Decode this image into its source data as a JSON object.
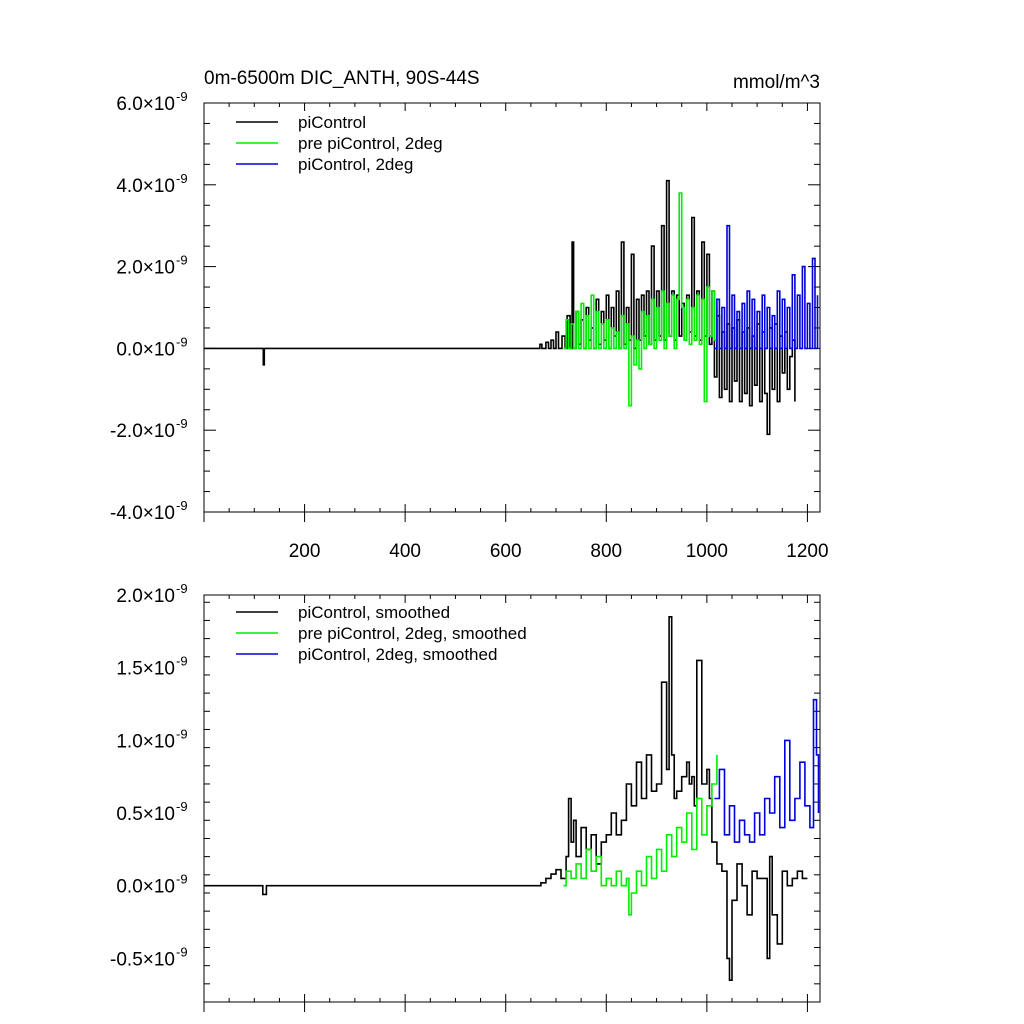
{
  "chart_data": [
    {
      "type": "line",
      "title": "0m-6500m DIC_ANTH, 90S-44S",
      "units": "mmol/m^3",
      "xlabel": "",
      "ylabel": "",
      "xlim": [
        0,
        1225
      ],
      "ylim": [
        -4.0,
        6.0
      ],
      "y_scale_exponent": "-9",
      "xticks": [
        200,
        400,
        600,
        800,
        1000,
        1200
      ],
      "xtick_labels": [
        "200",
        "400",
        "600",
        "800",
        "1000",
        "1200"
      ],
      "yticks": [
        -4.0,
        -2.0,
        0.0,
        2.0,
        4.0,
        6.0
      ],
      "ytick_labels": [
        "-4.0×10",
        "-2.0×10",
        "0.0×10",
        "2.0×10",
        "4.0×10",
        "6.0×10"
      ],
      "legend_position": "top-left",
      "series": [
        {
          "name": "piControl",
          "color": "#000000",
          "x": [
            0,
            115,
            118,
            120,
            122,
            125,
            660,
            668,
            672,
            680,
            685,
            690,
            695,
            700,
            705,
            712,
            718,
            722,
            728,
            732,
            735,
            740,
            745,
            750,
            755,
            760,
            765,
            770,
            775,
            780,
            785,
            790,
            795,
            800,
            805,
            810,
            815,
            820,
            825,
            830,
            835,
            840,
            845,
            850,
            855,
            860,
            865,
            870,
            875,
            880,
            885,
            890,
            895,
            900,
            905,
            910,
            915,
            920,
            925,
            930,
            935,
            940,
            945,
            950,
            955,
            960,
            965,
            970,
            975,
            980,
            985,
            990,
            995,
            1000,
            1005,
            1010,
            1015,
            1020,
            1025,
            1030,
            1035,
            1040,
            1045,
            1050,
            1055,
            1060,
            1065,
            1070,
            1075,
            1080,
            1085,
            1090,
            1095,
            1100,
            1105,
            1110,
            1115,
            1120,
            1125,
            1130,
            1135,
            1140,
            1145,
            1150,
            1155,
            1160,
            1165,
            1170,
            1175
          ],
          "y": [
            0.0,
            0.0,
            -0.4,
            0.0,
            0.0,
            0.0,
            0.0,
            0.1,
            0.0,
            0.15,
            0.0,
            0.2,
            0.0,
            0.4,
            0.0,
            0.3,
            0.0,
            0.8,
            0.0,
            2.6,
            0.0,
            0.9,
            0.1,
            0.7,
            0.0,
            1.0,
            0.2,
            0.5,
            0.0,
            1.2,
            0.1,
            0.9,
            0.2,
            1.3,
            0.0,
            1.0,
            0.3,
            1.4,
            0.0,
            2.6,
            0.1,
            1.0,
            0.2,
            2.3,
            0.0,
            1.2,
            0.2,
            1.3,
            0.3,
            1.4,
            0.1,
            2.5,
            0.2,
            1.4,
            0.3,
            3.0,
            0.2,
            4.1,
            0.3,
            1.4,
            0.2,
            1.3,
            0.3,
            1.1,
            0.2,
            1.3,
            0.4,
            3.2,
            0.3,
            1.4,
            0.2,
            2.6,
            0.3,
            2.3,
            0.1,
            1.4,
            -0.7,
            0.8,
            -1.2,
            0.4,
            -1.0,
            0.6,
            -1.3,
            0.5,
            -0.8,
            0.7,
            -1.3,
            0.4,
            -1.1,
            0.5,
            -1.4,
            0.3,
            -0.9,
            0.6,
            -1.3,
            0.4,
            -1.1,
            -2.1,
            0.5,
            -1.0,
            0.6,
            -1.3,
            0.3,
            -0.6,
            0.4,
            -1.0,
            -0.2,
            0.2,
            -1.3
          ]
        },
        {
          "name": "pre piControl, 2deg",
          "color": "#00ee00",
          "x": [
            715,
            720,
            725,
            730,
            735,
            740,
            745,
            750,
            755,
            760,
            765,
            770,
            775,
            780,
            785,
            790,
            795,
            800,
            805,
            810,
            815,
            820,
            825,
            830,
            835,
            840,
            845,
            850,
            855,
            860,
            865,
            870,
            875,
            880,
            885,
            890,
            895,
            900,
            905,
            910,
            915,
            920,
            925,
            930,
            935,
            940,
            945,
            950,
            955,
            960,
            965,
            970,
            975,
            980,
            985,
            990,
            995,
            1000,
            1005,
            1010,
            1015,
            1020
          ],
          "y": [
            0.0,
            0.7,
            0.0,
            0.6,
            0.0,
            0.9,
            0.0,
            1.1,
            0.0,
            0.8,
            0.0,
            1.3,
            0.0,
            0.9,
            0.0,
            0.6,
            0.0,
            0.7,
            0.0,
            0.5,
            0.0,
            0.4,
            0.0,
            0.8,
            0.0,
            0.6,
            -1.4,
            0.3,
            -0.4,
            0.2,
            -0.5,
            0.9,
            0.0,
            0.8,
            0.1,
            1.2,
            0.0,
            1.0,
            0.2,
            1.4,
            0.0,
            1.1,
            0.3,
            1.3,
            0.0,
            1.2,
            3.8,
            1.0,
            0.2,
            1.2,
            0.1,
            1.0,
            0.2,
            1.3,
            0.1,
            1.2,
            -1.3,
            1.5,
            0.3,
            1.4,
            0.2,
            1.0
          ]
        },
        {
          "name": "piControl, 2deg",
          "color": "#0000dd",
          "x": [
            1015,
            1020,
            1025,
            1030,
            1035,
            1040,
            1045,
            1050,
            1055,
            1060,
            1065,
            1070,
            1075,
            1080,
            1085,
            1090,
            1095,
            1100,
            1105,
            1110,
            1115,
            1120,
            1125,
            1130,
            1135,
            1140,
            1145,
            1150,
            1155,
            1160,
            1165,
            1170,
            1175,
            1180,
            1185,
            1190,
            1195,
            1200,
            1205,
            1210,
            1215,
            1220
          ],
          "y": [
            0.0,
            1.2,
            0.0,
            1.0,
            0.0,
            3.0,
            0.0,
            1.3,
            0.0,
            0.9,
            0.0,
            1.1,
            0.0,
            1.4,
            0.0,
            1.2,
            0.0,
            0.9,
            0.0,
            1.3,
            0.0,
            1.0,
            0.0,
            0.8,
            0.0,
            1.4,
            0.0,
            1.2,
            0.0,
            1.0,
            0.0,
            1.8,
            0.0,
            1.3,
            0.0,
            2.0,
            0.0,
            1.1,
            0.0,
            2.2,
            0.0,
            1.3
          ]
        }
      ]
    },
    {
      "type": "line",
      "title": "",
      "xlabel": "",
      "ylabel": "",
      "xlim": [
        0,
        1225
      ],
      "ylim": [
        -0.8,
        2.0
      ],
      "y_scale_exponent": "-9",
      "xticks": [
        200,
        400,
        600,
        800,
        1000,
        1200
      ],
      "yticks": [
        -0.5,
        0.0,
        0.5,
        1.0,
        1.5,
        2.0
      ],
      "ytick_labels": [
        "-0.5×10",
        "0.0×10",
        "0.5×10",
        "1.0×10",
        "1.5×10",
        "2.0×10"
      ],
      "legend_position": "top-left",
      "series": [
        {
          "name": "piControl, smoothed",
          "color": "#000000",
          "x": [
            0,
            115,
            117,
            122,
            124,
            660,
            670,
            680,
            690,
            700,
            710,
            720,
            725,
            730,
            735,
            740,
            750,
            760,
            770,
            780,
            790,
            800,
            810,
            820,
            830,
            840,
            850,
            860,
            870,
            880,
            890,
            900,
            910,
            920,
            925,
            930,
            935,
            940,
            950,
            960,
            965,
            970,
            975,
            980,
            990,
            1000,
            1005,
            1010,
            1020,
            1030,
            1040,
            1045,
            1050,
            1060,
            1070,
            1080,
            1090,
            1100,
            1110,
            1120,
            1125,
            1130,
            1140,
            1150,
            1160,
            1170,
            1180,
            1190,
            1200
          ],
          "y": [
            0.0,
            0.0,
            -0.06,
            -0.06,
            0.0,
            0.0,
            0.02,
            0.05,
            0.08,
            0.11,
            0.05,
            0.2,
            0.6,
            0.3,
            0.45,
            0.2,
            0.4,
            0.25,
            0.35,
            0.15,
            0.3,
            0.35,
            0.5,
            0.35,
            0.45,
            0.7,
            0.55,
            0.85,
            0.6,
            0.9,
            0.65,
            0.7,
            1.4,
            0.8,
            1.85,
            0.9,
            0.6,
            0.65,
            0.75,
            0.85,
            0.7,
            0.75,
            0.55,
            1.55,
            0.7,
            0.8,
            0.6,
            0.3,
            0.15,
            0.1,
            -0.5,
            -0.65,
            -0.1,
            0.15,
            0.0,
            -0.2,
            0.1,
            0.05,
            0.05,
            -0.5,
            0.2,
            -0.2,
            -0.4,
            0.1,
            0.0,
            0.05,
            0.1,
            0.05,
            0.05
          ]
        },
        {
          "name": "pre piControl, 2deg, smoothed",
          "color": "#00ee00",
          "x": [
            715,
            720,
            730,
            740,
            750,
            760,
            770,
            780,
            790,
            800,
            810,
            820,
            830,
            840,
            845,
            850,
            860,
            870,
            880,
            890,
            900,
            910,
            920,
            930,
            940,
            950,
            960,
            970,
            980,
            990,
            1000,
            1010,
            1020
          ],
          "y": [
            0.0,
            0.1,
            0.05,
            0.15,
            0.05,
            0.25,
            0.1,
            0.2,
            0.0,
            0.05,
            0.0,
            0.1,
            0.0,
            0.05,
            -0.2,
            -0.05,
            0.1,
            0.0,
            0.2,
            0.05,
            0.25,
            0.1,
            0.35,
            0.2,
            0.4,
            0.3,
            0.5,
            0.25,
            0.6,
            0.35,
            0.55,
            0.7,
            0.9
          ]
        },
        {
          "name": "piControl, 2deg, smoothed",
          "color": "#0000dd",
          "x": [
            1015,
            1025,
            1035,
            1045,
            1055,
            1065,
            1075,
            1085,
            1095,
            1105,
            1115,
            1125,
            1135,
            1145,
            1155,
            1165,
            1175,
            1185,
            1195,
            1205,
            1212,
            1218,
            1222
          ],
          "y": [
            0.6,
            0.8,
            0.35,
            0.55,
            0.3,
            0.45,
            0.35,
            0.3,
            0.5,
            0.35,
            0.6,
            0.5,
            0.75,
            0.4,
            1.0,
            0.45,
            0.6,
            0.85,
            0.55,
            0.4,
            1.28,
            0.9,
            0.5
          ]
        }
      ]
    }
  ]
}
